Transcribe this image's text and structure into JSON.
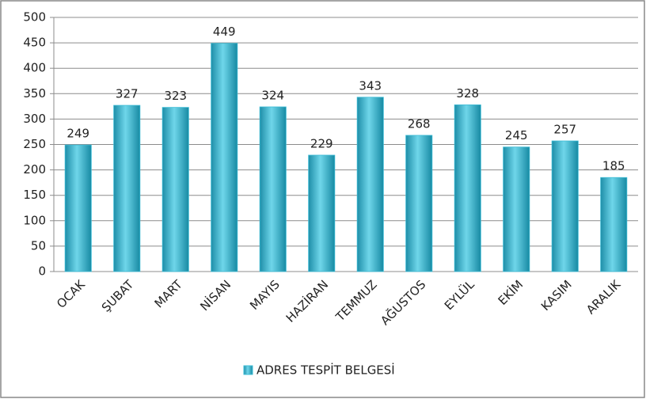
{
  "chart_data": {
    "type": "bar",
    "categories": [
      "OCAK",
      "ŞUBAT",
      "MART",
      "NİSAN",
      "MAYIS",
      "HAZİRAN",
      "TEMMUZ",
      "AĞUSTOS",
      "EYLÜL",
      "EKİM",
      "KASIM",
      "ARALIK"
    ],
    "series": [
      {
        "name": "ADRES TESPİT BELGESİ",
        "color": "#3bbcd6",
        "values": [
          249,
          327,
          323,
          449,
          324,
          229,
          343,
          268,
          328,
          245,
          257,
          185
        ]
      }
    ],
    "ylim": [
      0,
      500
    ],
    "yticks": [
      0,
      50,
      100,
      150,
      200,
      250,
      300,
      350,
      400,
      450,
      500
    ],
    "grid": true,
    "legend": "bottom"
  }
}
